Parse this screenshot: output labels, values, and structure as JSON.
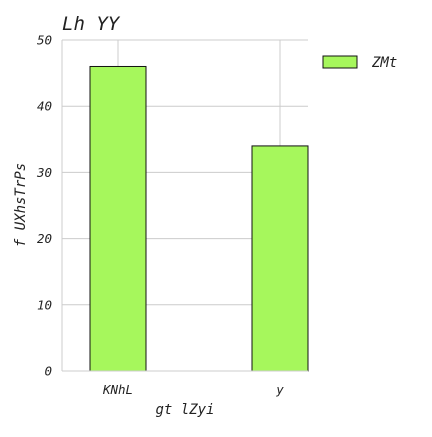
{
  "chart_data": {
    "type": "bar",
    "title": "Lh YY",
    "xlabel": "gt lZyi",
    "ylabel": "f UXhsTrPs",
    "categories": [
      "KNhL",
      "y"
    ],
    "series": [
      {
        "name": "ZMt",
        "values": [
          46,
          34
        ]
      }
    ],
    "ylim": [
      0,
      50
    ],
    "yticks": [
      0,
      10,
      20,
      30,
      40,
      50
    ],
    "grid": true,
    "legend_position": "top-right",
    "colors": {
      "bar_fill": "#a6f75c",
      "bar_edge": "#111111",
      "grid": "#cccccc",
      "axis": "#cccccc"
    }
  }
}
